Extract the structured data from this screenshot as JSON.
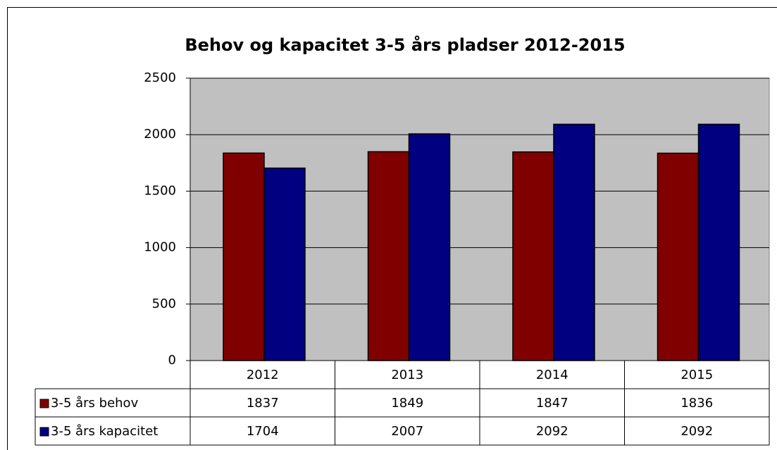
{
  "chart_data": {
    "type": "bar",
    "title": "Behov og kapacitet 3-5 års pladser 2012-2015",
    "categories": [
      "2012",
      "2013",
      "2014",
      "2015"
    ],
    "series": [
      {
        "name": "3-5 års behov",
        "color": "#800000",
        "values": [
          1837,
          1849,
          1847,
          1836
        ]
      },
      {
        "name": "3-5 års kapacitet",
        "color": "#000080",
        "values": [
          1704,
          2007,
          2092,
          2092
        ]
      }
    ],
    "ylim": [
      0,
      2500
    ],
    "yticks": [
      0,
      500,
      1000,
      1500,
      2000,
      2500
    ],
    "grid": true,
    "plot_background": "#c0c0c0",
    "data_table": true
  }
}
